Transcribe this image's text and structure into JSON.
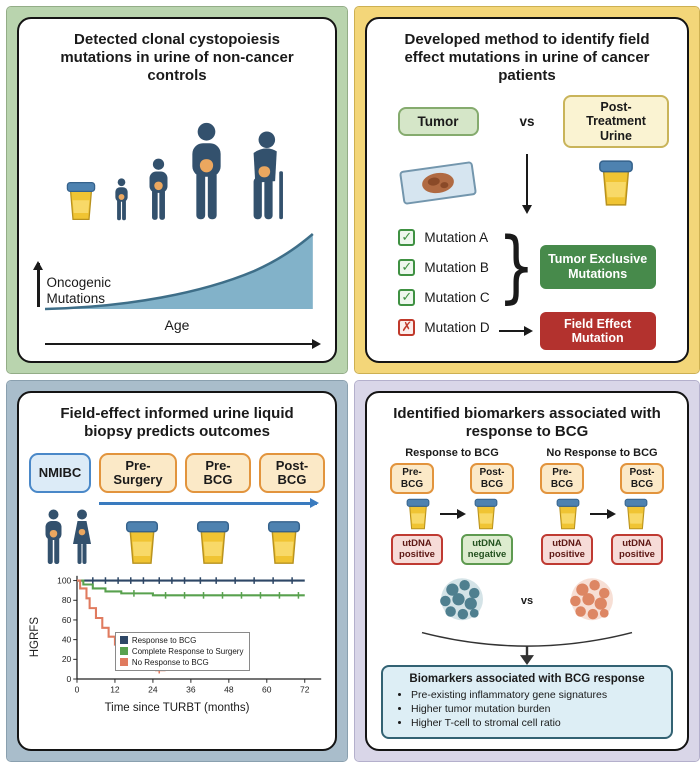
{
  "colors": {
    "panel1_frame": "#b9d4ae",
    "panel2_frame": "#f3d679",
    "panel3_frame": "#a9bdcb",
    "panel4_frame": "#d9d6e8",
    "person_navy": "#33516d",
    "cup_yellow": "#f0c433",
    "cup_lid_blue": "#4e82b0",
    "tumor_exclusive_green": "#478a4b",
    "field_effect_red": "#b3322e",
    "timeline_arrow_blue": "#3a7bbf"
  },
  "glyphs": {
    "brace": "}",
    "check": "✓",
    "cross": "✗"
  },
  "panel1": {
    "title": "Detected clonal cystopoiesis mutations in urine of non-cancer controls",
    "ylabel_line1": "Oncogenic",
    "ylabel_line2": "Mutations",
    "xlabel": "Age"
  },
  "panel2": {
    "title": "Developed method to identify field effect mutations in urine of cancer patients",
    "tumor_label": "Tumor",
    "vs_label": "vs",
    "urine_label": "Post-Treatment Urine",
    "mutations": [
      {
        "label": "Mutation A",
        "status": "check"
      },
      {
        "label": "Mutation B",
        "status": "check"
      },
      {
        "label": "Mutation C",
        "status": "check"
      },
      {
        "label": "Mutation D",
        "status": "cross"
      }
    ],
    "tumor_exclusive_label": "Tumor Exclusive Mutations",
    "field_effect_label": "Field Effect Mutation"
  },
  "panel3": {
    "title": "Field-effect informed urine liquid biopsy predicts outcomes",
    "timeline_boxes": [
      "NMIBC",
      "Pre-Surgery",
      "Pre-BCG",
      "Post-BCG"
    ],
    "chart": {
      "type": "line",
      "ylabel": "HGRFS",
      "xlabel": "Time since TURBT (months)",
      "ymax": 100,
      "xmax": 76,
      "yticks": [
        0,
        20,
        40,
        60,
        80,
        100
      ],
      "xticks": [
        0,
        12,
        24,
        36,
        48,
        60,
        72
      ],
      "series": [
        {
          "name": "Response to BCG",
          "color": "#2e4766",
          "points": [
            [
              0,
              100
            ],
            [
              72,
              100
            ]
          ],
          "censors": [
            [
              5,
              100
            ],
            [
              9,
              100
            ],
            [
              13,
              100
            ],
            [
              17,
              100
            ],
            [
              21,
              100
            ],
            [
              26,
              100
            ],
            [
              30,
              100
            ],
            [
              34,
              100
            ],
            [
              39,
              100
            ],
            [
              44,
              100
            ],
            [
              50,
              100
            ],
            [
              56,
              100
            ],
            [
              62,
              100
            ],
            [
              68,
              100
            ]
          ]
        },
        {
          "name": "Complete Response to Surgery",
          "color": "#58a14e",
          "points": [
            [
              0,
              100
            ],
            [
              2,
              100
            ],
            [
              2,
              96
            ],
            [
              5,
              96
            ],
            [
              5,
              92
            ],
            [
              9,
              92
            ],
            [
              9,
              89
            ],
            [
              14,
              89
            ],
            [
              14,
              87
            ],
            [
              24,
              87
            ],
            [
              24,
              85
            ],
            [
              72,
              85
            ]
          ],
          "censors": [
            [
              18,
              87
            ],
            [
              28,
              85
            ],
            [
              34,
              85
            ],
            [
              40,
              85
            ],
            [
              46,
              85
            ],
            [
              52,
              85
            ],
            [
              58,
              85
            ],
            [
              64,
              85
            ],
            [
              70,
              85
            ]
          ]
        },
        {
          "name": "No Response to BCG",
          "color": "#e07b5f",
          "points": [
            [
              0,
              100
            ],
            [
              1,
              100
            ],
            [
              1,
              92
            ],
            [
              3,
              92
            ],
            [
              3,
              82
            ],
            [
              4,
              82
            ],
            [
              4,
              72
            ],
            [
              6,
              72
            ],
            [
              6,
              62
            ],
            [
              8,
              62
            ],
            [
              8,
              52
            ],
            [
              10,
              52
            ],
            [
              10,
              43
            ],
            [
              12,
              43
            ],
            [
              12,
              35
            ],
            [
              14,
              35
            ],
            [
              14,
              28
            ],
            [
              16,
              28
            ],
            [
              16,
              22
            ],
            [
              18,
              22
            ],
            [
              18,
              15
            ],
            [
              21,
              15
            ],
            [
              21,
              11
            ],
            [
              25,
              11
            ],
            [
              25,
              9
            ],
            [
              28,
              9
            ]
          ],
          "censors": [
            [
              26,
              9
            ]
          ]
        }
      ]
    }
  },
  "panel4": {
    "title": "Identified biomarkers associated with response to BCG",
    "left_header": "Response to BCG",
    "right_header": "No Response to BCG",
    "pre_label": "Pre-BCG",
    "post_label": "Post-BCG",
    "left_pre_utdna": "utDNA positive",
    "left_post_utdna": "utDNA negative",
    "right_pre_utdna": "utDNA positive",
    "right_post_utdna": "utDNA positive",
    "vs_label": "vs",
    "biomarkers_title": "Biomarkers associated with BCG response",
    "biomarkers": [
      "Pre-existing inflammatory gene signatures",
      "Higher tumor mutation burden",
      "Higher T-cell to stromal cell ratio"
    ]
  }
}
